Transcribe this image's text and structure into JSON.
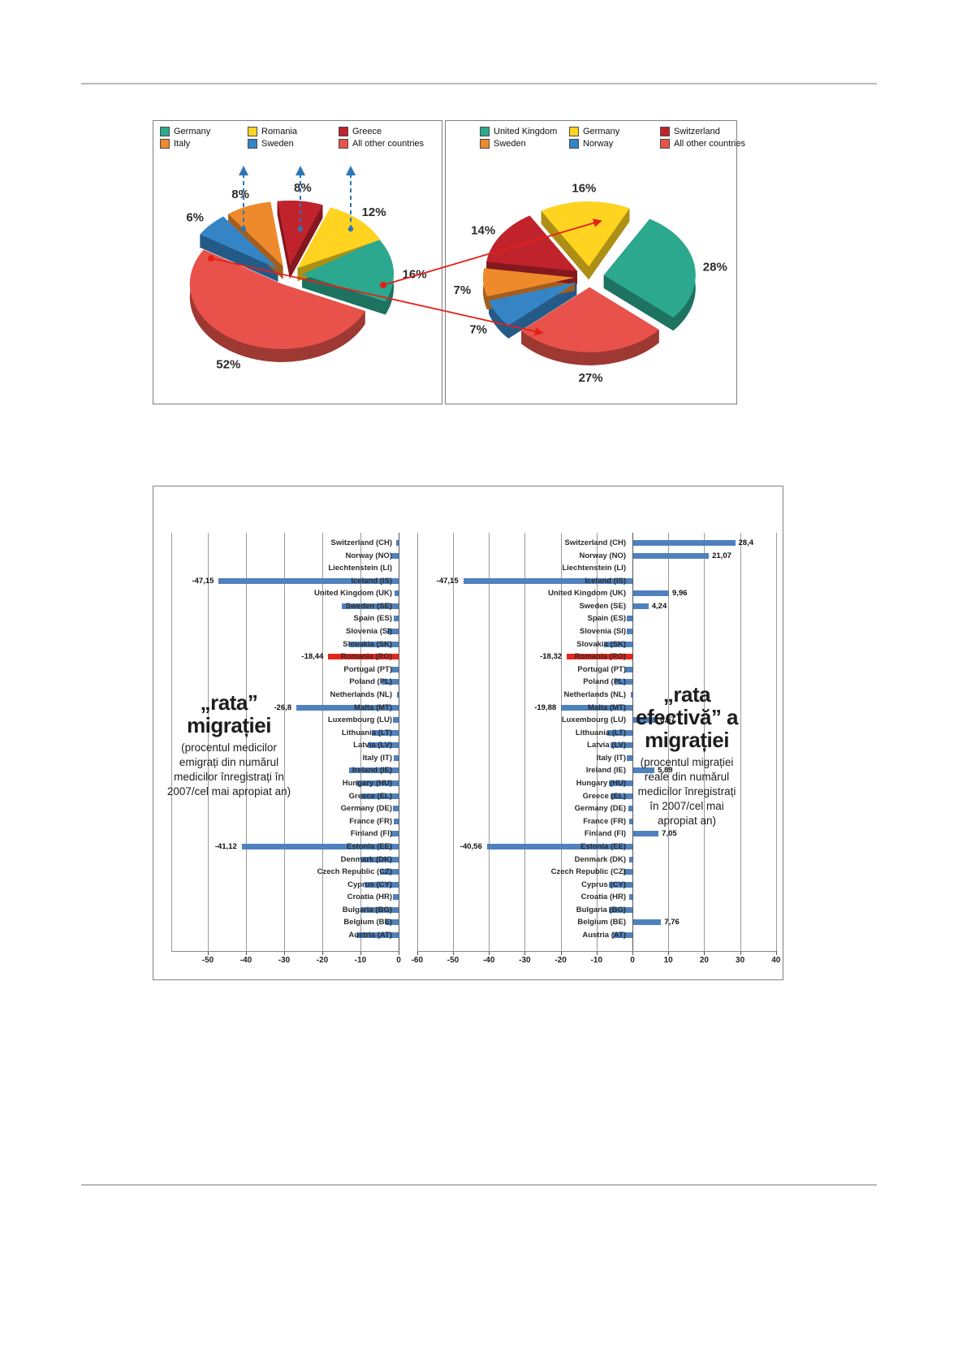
{
  "colors": {
    "teal": "#2BA88D",
    "yellow": "#FFD320",
    "dark_red": "#C0232C",
    "orange": "#EF8A2C",
    "blue": "#3585C6",
    "red": "#E8524A",
    "bar_blue": "#4F81BD",
    "bar_red": "#E3261E",
    "dashed_arrow": "#2E75B6",
    "red_line": "#E32119"
  },
  "chart_data": [
    {
      "id": "pie-left",
      "type": "pie",
      "legend": [
        {
          "label": "Germany",
          "color": "#2BA88D"
        },
        {
          "label": "Romania",
          "color": "#FFD320"
        },
        {
          "label": "Greece",
          "color": "#C0232C"
        },
        {
          "label": "Italy",
          "color": "#EF8A2C"
        },
        {
          "label": "Sweden",
          "color": "#3585C6"
        },
        {
          "label": "All other countries",
          "color": "#E8524A"
        }
      ],
      "start_angle": -33,
      "slices": [
        {
          "name": "Germany",
          "pct": 16,
          "pct_label": "16%",
          "color": "#2BA88D"
        },
        {
          "name": "All other countries",
          "pct": 52,
          "pct_label": "52%",
          "color": "#E8524A"
        },
        {
          "name": "Sweden",
          "pct": 6,
          "pct_label": "6%",
          "color": "#3585C6"
        },
        {
          "name": "Italy",
          "pct": 8,
          "pct_label": "8%",
          "color": "#EF8A2C"
        },
        {
          "name": "Greece",
          "pct": 8,
          "pct_label": "8%",
          "color": "#C0232C"
        },
        {
          "name": "Romania",
          "pct": 12,
          "pct_label": "12%",
          "color": "#FFD320"
        }
      ]
    },
    {
      "id": "pie-right",
      "type": "pie",
      "legend": [
        {
          "label": "United Kingdom",
          "color": "#2BA88D"
        },
        {
          "label": "Germany",
          "color": "#FFD320"
        },
        {
          "label": "Switzerland",
          "color": "#C0232C"
        },
        {
          "label": "Sweden",
          "color": "#EF8A2C"
        },
        {
          "label": "Norway",
          "color": "#3585C6"
        },
        {
          "label": "All other countries",
          "color": "#E8524A"
        }
      ],
      "start_angle": -60,
      "slices": [
        {
          "name": "United Kingdom",
          "pct": 28,
          "pct_label": "28%",
          "color": "#2BA88D"
        },
        {
          "name": "All other countries",
          "pct": 27,
          "pct_label": "27%",
          "color": "#E8524A"
        },
        {
          "name": "Norway",
          "pct": 7,
          "pct_label": "7%",
          "color": "#3585C6"
        },
        {
          "name": "Sweden",
          "pct": 7,
          "pct_label": "7%",
          "color": "#EF8A2C"
        },
        {
          "name": "Switzerland",
          "pct": 14,
          "pct_label": "14%",
          "color": "#C0232C"
        },
        {
          "name": "Germany",
          "pct": 16,
          "pct_label": "16%",
          "color": "#FFD320"
        }
      ]
    },
    {
      "id": "bar-left",
      "type": "bar",
      "orientation": "horizontal",
      "title_lines": [
        "„rata”",
        "migrației"
      ],
      "subtitle_lines": [
        "(procentul medicilor",
        "emigrați din numărul",
        "medicilor înregistrați în",
        "2007/cel mai apropiat an)"
      ],
      "axis_ticks": [
        -50,
        -40,
        -30,
        -20,
        -10,
        0
      ],
      "highlight_index": 9,
      "categories": [
        "Switzerland (CH)",
        "Norway (NO)",
        "Liechtenstein (LI)",
        "Iceland (IS)",
        "United Kingdom (UK)",
        "Sweden (SE)",
        "Spain (ES)",
        "Slovenia (SI)",
        "Slovakia (SK)",
        "Romania (RO)",
        "Portugal (PT)",
        "Poland (PL)",
        "Netherlands (NL)",
        "Malta (MT)",
        "Luxembourg (LU)",
        "Lithuania (LT)",
        "Latvia (LV)",
        "Italy (IT)",
        "Ireland (IE)",
        "Hungary (HU)",
        "Greece (EL)",
        "Germany (DE)",
        "France (FR)",
        "Finland (FI)",
        "Estonia (EE)",
        "Denmark (DK)",
        "Czech Republic (CZ)",
        "Cyprus (CY)",
        "Croatia (HR)",
        "Bulgaria (BG)",
        "Belgium (BE)",
        "Austria (AT)"
      ],
      "values": [
        -0.6,
        -2,
        0,
        -47.15,
        -1,
        -15,
        -1.2,
        -3,
        -13,
        -18.44,
        -2,
        -4.5,
        -0.5,
        -26.8,
        -1.5,
        -7,
        -8,
        -1.3,
        -13,
        -11,
        -10,
        -1.5,
        -1.2,
        -2,
        -41.12,
        -10,
        -5,
        -9,
        -1.5,
        -10,
        -3.5,
        -11
      ],
      "value_labels": [
        null,
        null,
        null,
        "-47,15",
        null,
        null,
        null,
        null,
        null,
        "-18,44",
        null,
        null,
        null,
        "-26,8",
        null,
        null,
        null,
        null,
        null,
        null,
        null,
        null,
        null,
        null,
        "-41,12",
        null,
        null,
        null,
        null,
        null,
        null,
        null
      ]
    },
    {
      "id": "bar-right",
      "type": "bar",
      "orientation": "horizontal",
      "title_lines": [
        "„rata",
        "efectivă” a",
        "migrației"
      ],
      "subtitle_lines": [
        "(procentul migrației",
        "reale din numărul",
        "medicilor înregistrați",
        "în 2007/cel mai",
        "apropiat an)"
      ],
      "axis_ticks": [
        -60,
        -50,
        -40,
        -30,
        -20,
        -10,
        0,
        10,
        20,
        30,
        40
      ],
      "highlight_index": 9,
      "categories": [
        "Switzerland (CH)",
        "Norway (NO)",
        "Liechtenstein (LI)",
        "Iceland (IS)",
        "United Kingdom (UK)",
        "Sweden (SE)",
        "Spain (ES)",
        "Slovenia (SI)",
        "Slovakia (SK)",
        "Romania (RO)",
        "Portugal (PT)",
        "Poland (PL)",
        "Netherlands (NL)",
        "Malta (MT)",
        "Luxembourg (LU)",
        "Lithuania (LT)",
        "Latvia (LV)",
        "Italy (IT)",
        "Ireland (IE)",
        "Hungary (HU)",
        "Greece (EL)",
        "Germany (DE)",
        "France (FR)",
        "Finland (FI)",
        "Estonia (EE)",
        "Denmark (DK)",
        "Czech Republic (CZ)",
        "Cyprus (CY)",
        "Croatia (HR)",
        "Bulgaria (BG)",
        "Belgium (BE)",
        "Austria (AT)"
      ],
      "values": [
        28.4,
        21.07,
        0,
        -47.15,
        9.96,
        4.24,
        -1.5,
        -1.5,
        -8,
        -18.32,
        -2,
        -5,
        -0.5,
        -19.88,
        6.57,
        -7,
        -6,
        -1.5,
        5.89,
        -6.5,
        -6,
        -1.2,
        -1,
        7.05,
        -40.56,
        -0.8,
        -2.5,
        -6.5,
        -1,
        -6.5,
        7.76,
        -5.5
      ],
      "value_labels": [
        "28,4",
        "21,07",
        null,
        "-47,15",
        "9,96",
        "4,24",
        null,
        null,
        null,
        "-18,32",
        null,
        null,
        null,
        "-19,88",
        "6,57",
        null,
        null,
        null,
        "5,89",
        null,
        null,
        null,
        null,
        "7,05",
        "-40,56",
        null,
        null,
        null,
        null,
        null,
        "7,76",
        null
      ]
    }
  ]
}
